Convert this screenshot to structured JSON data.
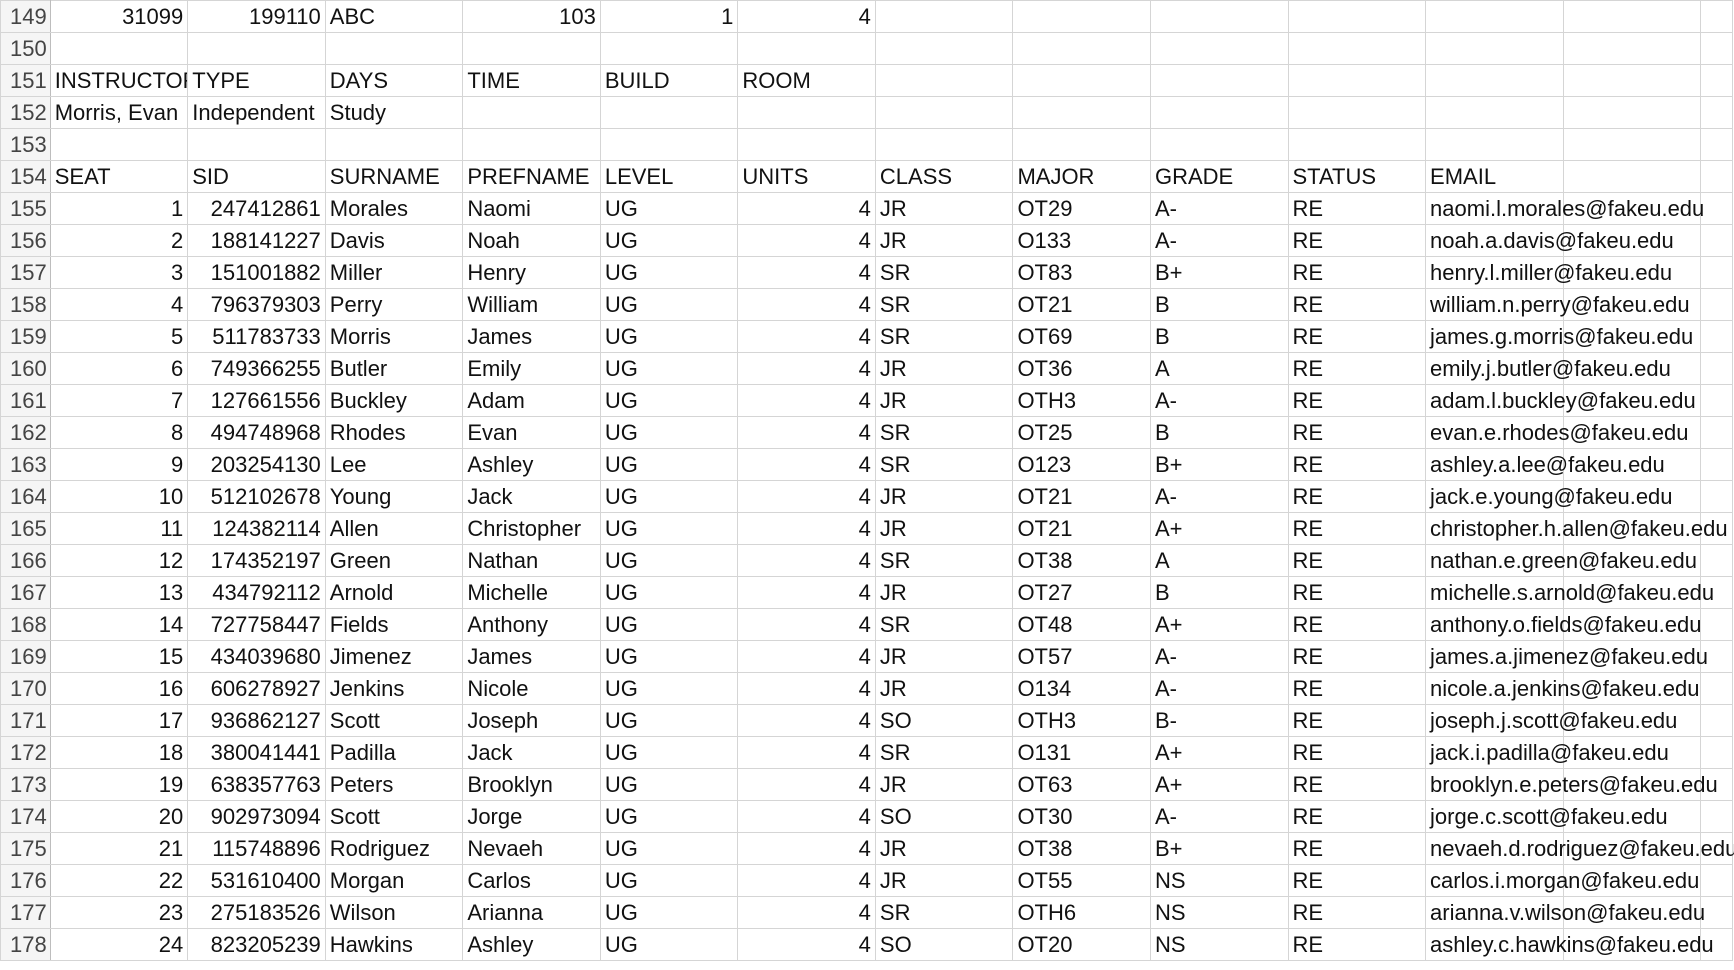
{
  "sheet": {
    "row_149": {
      "row_num": "149",
      "cells": [
        "31099",
        "199110",
        "ABC",
        "103",
        "1",
        "4"
      ]
    },
    "row_150": {
      "row_num": "150"
    },
    "row_151": {
      "row_num": "151",
      "cells": [
        "INSTRUCTOR",
        "TYPE",
        "DAYS",
        "TIME",
        "BUILD",
        "ROOM"
      ]
    },
    "row_152": {
      "row_num": "152",
      "cells": [
        "Morris, Evan",
        "Independent",
        "Study"
      ]
    },
    "row_153": {
      "row_num": "153"
    },
    "header_row": {
      "row_num": "154",
      "columns": [
        "SEAT",
        "SID",
        "SURNAME",
        "PREFNAME",
        "LEVEL",
        "UNITS",
        "CLASS",
        "MAJOR",
        "GRADE",
        "STATUS",
        "EMAIL"
      ]
    },
    "students": [
      {
        "row_num": "155",
        "seat": "1",
        "sid": "247412861",
        "surname": "Morales",
        "prefname": "Naomi",
        "level": "UG",
        "units": "4",
        "class": "JR",
        "major": "OT29",
        "grade": "A-",
        "status": "RE",
        "email": "naomi.l.morales@fakeu.edu"
      },
      {
        "row_num": "156",
        "seat": "2",
        "sid": "188141227",
        "surname": "Davis",
        "prefname": "Noah",
        "level": "UG",
        "units": "4",
        "class": "JR",
        "major": "O133",
        "grade": "A-",
        "status": "RE",
        "email": "noah.a.davis@fakeu.edu"
      },
      {
        "row_num": "157",
        "seat": "3",
        "sid": "151001882",
        "surname": "Miller",
        "prefname": "Henry",
        "level": "UG",
        "units": "4",
        "class": "SR",
        "major": "OT83",
        "grade": "B+",
        "status": "RE",
        "email": "henry.l.miller@fakeu.edu"
      },
      {
        "row_num": "158",
        "seat": "4",
        "sid": "796379303",
        "surname": "Perry",
        "prefname": "William",
        "level": "UG",
        "units": "4",
        "class": "SR",
        "major": "OT21",
        "grade": "B",
        "status": "RE",
        "email": "william.n.perry@fakeu.edu"
      },
      {
        "row_num": "159",
        "seat": "5",
        "sid": "511783733",
        "surname": "Morris",
        "prefname": "James",
        "level": "UG",
        "units": "4",
        "class": "SR",
        "major": "OT69",
        "grade": "B",
        "status": "RE",
        "email": "james.g.morris@fakeu.edu"
      },
      {
        "row_num": "160",
        "seat": "6",
        "sid": "749366255",
        "surname": "Butler",
        "prefname": "Emily",
        "level": "UG",
        "units": "4",
        "class": "JR",
        "major": "OT36",
        "grade": "A",
        "status": "RE",
        "email": "emily.j.butler@fakeu.edu"
      },
      {
        "row_num": "161",
        "seat": "7",
        "sid": "127661556",
        "surname": "Buckley",
        "prefname": "Adam",
        "level": "UG",
        "units": "4",
        "class": "JR",
        "major": "OTH3",
        "grade": "A-",
        "status": "RE",
        "email": "adam.l.buckley@fakeu.edu"
      },
      {
        "row_num": "162",
        "seat": "8",
        "sid": "494748968",
        "surname": "Rhodes",
        "prefname": "Evan",
        "level": "UG",
        "units": "4",
        "class": "SR",
        "major": "OT25",
        "grade": "B",
        "status": "RE",
        "email": "evan.e.rhodes@fakeu.edu"
      },
      {
        "row_num": "163",
        "seat": "9",
        "sid": "203254130",
        "surname": "Lee",
        "prefname": "Ashley",
        "level": "UG",
        "units": "4",
        "class": "SR",
        "major": "O123",
        "grade": "B+",
        "status": "RE",
        "email": "ashley.a.lee@fakeu.edu"
      },
      {
        "row_num": "164",
        "seat": "10",
        "sid": "512102678",
        "surname": "Young",
        "prefname": "Jack",
        "level": "UG",
        "units": "4",
        "class": "JR",
        "major": "OT21",
        "grade": "A-",
        "status": "RE",
        "email": "jack.e.young@fakeu.edu"
      },
      {
        "row_num": "165",
        "seat": "11",
        "sid": "124382114",
        "surname": "Allen",
        "prefname": "Christopher",
        "level": "UG",
        "units": "4",
        "class": "JR",
        "major": "OT21",
        "grade": "A+",
        "status": "RE",
        "email": "christopher.h.allen@fakeu.edu"
      },
      {
        "row_num": "166",
        "seat": "12",
        "sid": "174352197",
        "surname": "Green",
        "prefname": "Nathan",
        "level": "UG",
        "units": "4",
        "class": "SR",
        "major": "OT38",
        "grade": "A",
        "status": "RE",
        "email": "nathan.e.green@fakeu.edu"
      },
      {
        "row_num": "167",
        "seat": "13",
        "sid": "434792112",
        "surname": "Arnold",
        "prefname": "Michelle",
        "level": "UG",
        "units": "4",
        "class": "JR",
        "major": "OT27",
        "grade": "B",
        "status": "RE",
        "email": "michelle.s.arnold@fakeu.edu"
      },
      {
        "row_num": "168",
        "seat": "14",
        "sid": "727758447",
        "surname": "Fields",
        "prefname": "Anthony",
        "level": "UG",
        "units": "4",
        "class": "SR",
        "major": "OT48",
        "grade": "A+",
        "status": "RE",
        "email": "anthony.o.fields@fakeu.edu"
      },
      {
        "row_num": "169",
        "seat": "15",
        "sid": "434039680",
        "surname": "Jimenez",
        "prefname": "James",
        "level": "UG",
        "units": "4",
        "class": "JR",
        "major": "OT57",
        "grade": "A-",
        "status": "RE",
        "email": "james.a.jimenez@fakeu.edu"
      },
      {
        "row_num": "170",
        "seat": "16",
        "sid": "606278927",
        "surname": "Jenkins",
        "prefname": "Nicole",
        "level": "UG",
        "units": "4",
        "class": "JR",
        "major": "O134",
        "grade": "A-",
        "status": "RE",
        "email": "nicole.a.jenkins@fakeu.edu"
      },
      {
        "row_num": "171",
        "seat": "17",
        "sid": "936862127",
        "surname": "Scott",
        "prefname": "Joseph",
        "level": "UG",
        "units": "4",
        "class": "SO",
        "major": "OTH3",
        "grade": "B-",
        "status": "RE",
        "email": "joseph.j.scott@fakeu.edu"
      },
      {
        "row_num": "172",
        "seat": "18",
        "sid": "380041441",
        "surname": "Padilla",
        "prefname": "Jack",
        "level": "UG",
        "units": "4",
        "class": "SR",
        "major": "O131",
        "grade": "A+",
        "status": "RE",
        "email": "jack.i.padilla@fakeu.edu"
      },
      {
        "row_num": "173",
        "seat": "19",
        "sid": "638357763",
        "surname": "Peters",
        "prefname": "Brooklyn",
        "level": "UG",
        "units": "4",
        "class": "JR",
        "major": "OT63",
        "grade": "A+",
        "status": "RE",
        "email": "brooklyn.e.peters@fakeu.edu"
      },
      {
        "row_num": "174",
        "seat": "20",
        "sid": "902973094",
        "surname": "Scott",
        "prefname": "Jorge",
        "level": "UG",
        "units": "4",
        "class": "SO",
        "major": "OT30",
        "grade": "A-",
        "status": "RE",
        "email": "jorge.c.scott@fakeu.edu"
      },
      {
        "row_num": "175",
        "seat": "21",
        "sid": "115748896",
        "surname": "Rodriguez",
        "prefname": "Nevaeh",
        "level": "UG",
        "units": "4",
        "class": "JR",
        "major": "OT38",
        "grade": "B+",
        "status": "RE",
        "email": "nevaeh.d.rodriguez@fakeu.edu"
      },
      {
        "row_num": "176",
        "seat": "22",
        "sid": "531610400",
        "surname": "Morgan",
        "prefname": "Carlos",
        "level": "UG",
        "units": "4",
        "class": "JR",
        "major": "OT55",
        "grade": "NS",
        "status": "RE",
        "email": "carlos.i.morgan@fakeu.edu"
      },
      {
        "row_num": "177",
        "seat": "23",
        "sid": "275183526",
        "surname": "Wilson",
        "prefname": "Arianna",
        "level": "UG",
        "units": "4",
        "class": "SR",
        "major": "OTH6",
        "grade": "NS",
        "status": "RE",
        "email": "arianna.v.wilson@fakeu.edu"
      },
      {
        "row_num": "178",
        "seat": "24",
        "sid": "823205239",
        "surname": "Hawkins",
        "prefname": "Ashley",
        "level": "UG",
        "units": "4",
        "class": "SO",
        "major": "OT20",
        "grade": "NS",
        "status": "RE",
        "email": "ashley.c.hawkins@fakeu.edu"
      }
    ]
  },
  "colors": {
    "gridline": "#d5d5d5",
    "row_header_bg": "#f5f5f5",
    "text": "#111111"
  }
}
